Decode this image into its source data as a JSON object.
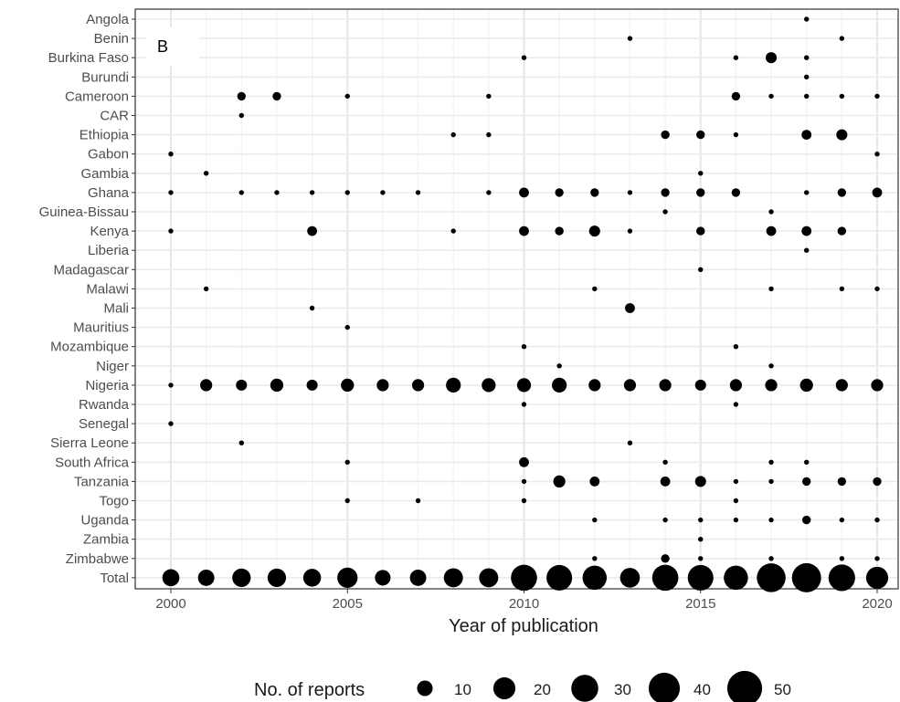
{
  "chart_data": {
    "type": "scatter",
    "panel_label": "B",
    "xlabel": "Year of publication",
    "ylabel": "",
    "xlim": [
      1999,
      2020.6
    ],
    "x_ticks": [
      2000,
      2005,
      2010,
      2015,
      2020
    ],
    "grid": true,
    "categories": [
      "Angola",
      "Benin",
      "Burkina Faso",
      "Burundi",
      "Cameroon",
      "CAR",
      "Ethiopia",
      "Gabon",
      "Gambia",
      "Ghana",
      "Guinea-Bissau",
      "Kenya",
      "Liberia",
      "Madagascar",
      "Malawi",
      "Mali",
      "Mauritius",
      "Mozambique",
      "Niger",
      "Nigeria",
      "Rwanda",
      "Senegal",
      "Sierra Leone",
      "South Africa",
      "Tanzania",
      "Togo",
      "Uganda",
      "Zambia",
      "Zimbabwe",
      "Total"
    ],
    "size_legend": {
      "title": "No. of reports",
      "values": [
        10,
        20,
        30,
        40,
        50
      ],
      "placement": "bottom"
    },
    "points": [
      {
        "country": "Angola",
        "year": 2018,
        "count": 1
      },
      {
        "country": "Benin",
        "year": 2013,
        "count": 1
      },
      {
        "country": "Benin",
        "year": 2019,
        "count": 1
      },
      {
        "country": "Burkina Faso",
        "year": 2010,
        "count": 1
      },
      {
        "country": "Burkina Faso",
        "year": 2016,
        "count": 1
      },
      {
        "country": "Burkina Faso",
        "year": 2017,
        "count": 5
      },
      {
        "country": "Burkina Faso",
        "year": 2018,
        "count": 1
      },
      {
        "country": "Burundi",
        "year": 2018,
        "count": 1
      },
      {
        "country": "Cameroon",
        "year": 2002,
        "count": 3
      },
      {
        "country": "Cameroon",
        "year": 2003,
        "count": 3
      },
      {
        "country": "Cameroon",
        "year": 2005,
        "count": 1
      },
      {
        "country": "Cameroon",
        "year": 2009,
        "count": 1
      },
      {
        "country": "Cameroon",
        "year": 2016,
        "count": 3
      },
      {
        "country": "Cameroon",
        "year": 2017,
        "count": 1
      },
      {
        "country": "Cameroon",
        "year": 2018,
        "count": 1
      },
      {
        "country": "Cameroon",
        "year": 2019,
        "count": 1
      },
      {
        "country": "Cameroon",
        "year": 2020,
        "count": 1
      },
      {
        "country": "CAR",
        "year": 2002,
        "count": 1
      },
      {
        "country": "Ethiopia",
        "year": 2008,
        "count": 1
      },
      {
        "country": "Ethiopia",
        "year": 2009,
        "count": 1
      },
      {
        "country": "Ethiopia",
        "year": 2014,
        "count": 3
      },
      {
        "country": "Ethiopia",
        "year": 2015,
        "count": 3
      },
      {
        "country": "Ethiopia",
        "year": 2016,
        "count": 1
      },
      {
        "country": "Ethiopia",
        "year": 2018,
        "count": 4
      },
      {
        "country": "Ethiopia",
        "year": 2019,
        "count": 5
      },
      {
        "country": "Gabon",
        "year": 2000,
        "count": 1
      },
      {
        "country": "Gabon",
        "year": 2020,
        "count": 1
      },
      {
        "country": "Gambia",
        "year": 2001,
        "count": 1
      },
      {
        "country": "Gambia",
        "year": 2015,
        "count": 1
      },
      {
        "country": "Ghana",
        "year": 2000,
        "count": 1
      },
      {
        "country": "Ghana",
        "year": 2002,
        "count": 1
      },
      {
        "country": "Ghana",
        "year": 2003,
        "count": 1
      },
      {
        "country": "Ghana",
        "year": 2004,
        "count": 1
      },
      {
        "country": "Ghana",
        "year": 2005,
        "count": 1
      },
      {
        "country": "Ghana",
        "year": 2006,
        "count": 1
      },
      {
        "country": "Ghana",
        "year": 2007,
        "count": 1
      },
      {
        "country": "Ghana",
        "year": 2009,
        "count": 1
      },
      {
        "country": "Ghana",
        "year": 2010,
        "count": 4
      },
      {
        "country": "Ghana",
        "year": 2011,
        "count": 3
      },
      {
        "country": "Ghana",
        "year": 2012,
        "count": 3
      },
      {
        "country": "Ghana",
        "year": 2013,
        "count": 1
      },
      {
        "country": "Ghana",
        "year": 2014,
        "count": 3
      },
      {
        "country": "Ghana",
        "year": 2015,
        "count": 3
      },
      {
        "country": "Ghana",
        "year": 2016,
        "count": 3
      },
      {
        "country": "Ghana",
        "year": 2018,
        "count": 1
      },
      {
        "country": "Ghana",
        "year": 2019,
        "count": 3
      },
      {
        "country": "Ghana",
        "year": 2020,
        "count": 4
      },
      {
        "country": "Guinea-Bissau",
        "year": 2014,
        "count": 1
      },
      {
        "country": "Guinea-Bissau",
        "year": 2017,
        "count": 1
      },
      {
        "country": "Kenya",
        "year": 2000,
        "count": 1
      },
      {
        "country": "Kenya",
        "year": 2004,
        "count": 4
      },
      {
        "country": "Kenya",
        "year": 2008,
        "count": 1
      },
      {
        "country": "Kenya",
        "year": 2010,
        "count": 4
      },
      {
        "country": "Kenya",
        "year": 2011,
        "count": 3
      },
      {
        "country": "Kenya",
        "year": 2012,
        "count": 5
      },
      {
        "country": "Kenya",
        "year": 2013,
        "count": 1
      },
      {
        "country": "Kenya",
        "year": 2015,
        "count": 3
      },
      {
        "country": "Kenya",
        "year": 2017,
        "count": 4
      },
      {
        "country": "Kenya",
        "year": 2018,
        "count": 4
      },
      {
        "country": "Kenya",
        "year": 2019,
        "count": 3
      },
      {
        "country": "Liberia",
        "year": 2018,
        "count": 1
      },
      {
        "country": "Madagascar",
        "year": 2015,
        "count": 1
      },
      {
        "country": "Malawi",
        "year": 2001,
        "count": 1
      },
      {
        "country": "Malawi",
        "year": 2012,
        "count": 1
      },
      {
        "country": "Malawi",
        "year": 2017,
        "count": 1
      },
      {
        "country": "Malawi",
        "year": 2019,
        "count": 1
      },
      {
        "country": "Malawi",
        "year": 2020,
        "count": 1
      },
      {
        "country": "Mali",
        "year": 2004,
        "count": 1
      },
      {
        "country": "Mali",
        "year": 2013,
        "count": 4
      },
      {
        "country": "Mauritius",
        "year": 2005,
        "count": 1
      },
      {
        "country": "Mozambique",
        "year": 2010,
        "count": 1
      },
      {
        "country": "Mozambique",
        "year": 2016,
        "count": 1
      },
      {
        "country": "Niger",
        "year": 2011,
        "count": 1
      },
      {
        "country": "Niger",
        "year": 2017,
        "count": 1
      },
      {
        "country": "Nigeria",
        "year": 2000,
        "count": 1
      },
      {
        "country": "Nigeria",
        "year": 2001,
        "count": 6
      },
      {
        "country": "Nigeria",
        "year": 2002,
        "count": 5
      },
      {
        "country": "Nigeria",
        "year": 2003,
        "count": 7
      },
      {
        "country": "Nigeria",
        "year": 2004,
        "count": 5
      },
      {
        "country": "Nigeria",
        "year": 2005,
        "count": 7
      },
      {
        "country": "Nigeria",
        "year": 2006,
        "count": 6
      },
      {
        "country": "Nigeria",
        "year": 2007,
        "count": 6
      },
      {
        "country": "Nigeria",
        "year": 2008,
        "count": 9
      },
      {
        "country": "Nigeria",
        "year": 2009,
        "count": 8
      },
      {
        "country": "Nigeria",
        "year": 2010,
        "count": 8
      },
      {
        "country": "Nigeria",
        "year": 2011,
        "count": 9
      },
      {
        "country": "Nigeria",
        "year": 2012,
        "count": 6
      },
      {
        "country": "Nigeria",
        "year": 2013,
        "count": 6
      },
      {
        "country": "Nigeria",
        "year": 2014,
        "count": 6
      },
      {
        "country": "Nigeria",
        "year": 2015,
        "count": 5
      },
      {
        "country": "Nigeria",
        "year": 2016,
        "count": 6
      },
      {
        "country": "Nigeria",
        "year": 2017,
        "count": 6
      },
      {
        "country": "Nigeria",
        "year": 2018,
        "count": 7
      },
      {
        "country": "Nigeria",
        "year": 2019,
        "count": 6
      },
      {
        "country": "Nigeria",
        "year": 2020,
        "count": 6
      },
      {
        "country": "Rwanda",
        "year": 2010,
        "count": 1
      },
      {
        "country": "Rwanda",
        "year": 2016,
        "count": 1
      },
      {
        "country": "Senegal",
        "year": 2000,
        "count": 1
      },
      {
        "country": "Sierra Leone",
        "year": 2002,
        "count": 1
      },
      {
        "country": "Sierra Leone",
        "year": 2013,
        "count": 1
      },
      {
        "country": "South Africa",
        "year": 2005,
        "count": 1
      },
      {
        "country": "South Africa",
        "year": 2010,
        "count": 4
      },
      {
        "country": "South Africa",
        "year": 2014,
        "count": 1
      },
      {
        "country": "South Africa",
        "year": 2017,
        "count": 1
      },
      {
        "country": "South Africa",
        "year": 2018,
        "count": 1
      },
      {
        "country": "Tanzania",
        "year": 2010,
        "count": 1
      },
      {
        "country": "Tanzania",
        "year": 2011,
        "count": 6
      },
      {
        "country": "Tanzania",
        "year": 2012,
        "count": 4
      },
      {
        "country": "Tanzania",
        "year": 2014,
        "count": 4
      },
      {
        "country": "Tanzania",
        "year": 2015,
        "count": 5
      },
      {
        "country": "Tanzania",
        "year": 2016,
        "count": 1
      },
      {
        "country": "Tanzania",
        "year": 2017,
        "count": 1
      },
      {
        "country": "Tanzania",
        "year": 2018,
        "count": 3
      },
      {
        "country": "Tanzania",
        "year": 2019,
        "count": 3
      },
      {
        "country": "Tanzania",
        "year": 2020,
        "count": 3
      },
      {
        "country": "Togo",
        "year": 2005,
        "count": 1
      },
      {
        "country": "Togo",
        "year": 2007,
        "count": 1
      },
      {
        "country": "Togo",
        "year": 2010,
        "count": 1
      },
      {
        "country": "Togo",
        "year": 2016,
        "count": 1
      },
      {
        "country": "Uganda",
        "year": 2012,
        "count": 1
      },
      {
        "country": "Uganda",
        "year": 2014,
        "count": 1
      },
      {
        "country": "Uganda",
        "year": 2015,
        "count": 1
      },
      {
        "country": "Uganda",
        "year": 2016,
        "count": 1
      },
      {
        "country": "Uganda",
        "year": 2017,
        "count": 1
      },
      {
        "country": "Uganda",
        "year": 2018,
        "count": 3
      },
      {
        "country": "Uganda",
        "year": 2019,
        "count": 1
      },
      {
        "country": "Uganda",
        "year": 2020,
        "count": 1
      },
      {
        "country": "Zambia",
        "year": 2015,
        "count": 1
      },
      {
        "country": "Zimbabwe",
        "year": 2012,
        "count": 1
      },
      {
        "country": "Zimbabwe",
        "year": 2014,
        "count": 3
      },
      {
        "country": "Zimbabwe",
        "year": 2015,
        "count": 1
      },
      {
        "country": "Zimbabwe",
        "year": 2017,
        "count": 1
      },
      {
        "country": "Zimbabwe",
        "year": 2019,
        "count": 1
      },
      {
        "country": "Zimbabwe",
        "year": 2020,
        "count": 1
      },
      {
        "country": "Total",
        "year": 2000,
        "count": 12
      },
      {
        "country": "Total",
        "year": 2001,
        "count": 11
      },
      {
        "country": "Total",
        "year": 2002,
        "count": 14
      },
      {
        "country": "Total",
        "year": 2003,
        "count": 14
      },
      {
        "country": "Total",
        "year": 2004,
        "count": 13
      },
      {
        "country": "Total",
        "year": 2005,
        "count": 17
      },
      {
        "country": "Total",
        "year": 2006,
        "count": 10
      },
      {
        "country": "Total",
        "year": 2007,
        "count": 11
      },
      {
        "country": "Total",
        "year": 2008,
        "count": 15
      },
      {
        "country": "Total",
        "year": 2009,
        "count": 15
      },
      {
        "country": "Total",
        "year": 2010,
        "count": 28
      },
      {
        "country": "Total",
        "year": 2011,
        "count": 27
      },
      {
        "country": "Total",
        "year": 2012,
        "count": 24
      },
      {
        "country": "Total",
        "year": 2013,
        "count": 16
      },
      {
        "country": "Total",
        "year": 2014,
        "count": 28
      },
      {
        "country": "Total",
        "year": 2015,
        "count": 27
      },
      {
        "country": "Total",
        "year": 2016,
        "count": 24
      },
      {
        "country": "Total",
        "year": 2017,
        "count": 34
      },
      {
        "country": "Total",
        "year": 2018,
        "count": 35
      },
      {
        "country": "Total",
        "year": 2019,
        "count": 29
      },
      {
        "country": "Total",
        "year": 2020,
        "count": 20
      }
    ]
  }
}
